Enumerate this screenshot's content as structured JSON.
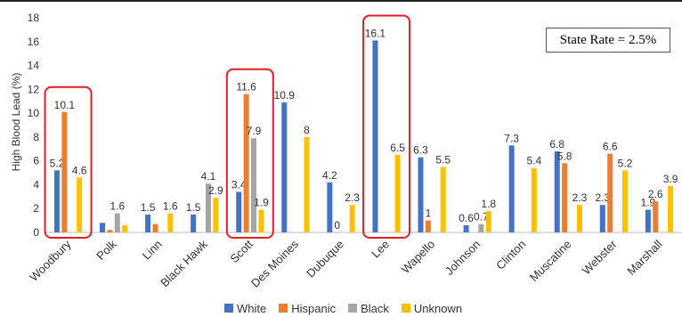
{
  "chart_data": {
    "type": "bar",
    "title": "",
    "ylabel": "High Blood Lead (%)",
    "xlabel": "",
    "ylim": [
      0,
      18
    ],
    "yticks": [
      "0",
      "2",
      "4",
      "6",
      "8",
      "10",
      "12",
      "14",
      "16",
      "18"
    ],
    "grid": false,
    "legend_placement": "bottom",
    "categories": [
      "Woodbury",
      "Polk",
      "Linn",
      "Black Hawk",
      "Scott",
      "Des Moines",
      "Dubuque",
      "Lee",
      "Wapello",
      "Johnson",
      "Clinton",
      "Muscatine",
      "Webster",
      "Marshall"
    ],
    "series": [
      {
        "name": "White",
        "color": "#4472C4",
        "values": [
          5.2,
          0.8,
          1.5,
          1.5,
          3.4,
          10.9,
          4.2,
          16.1,
          6.3,
          0.6,
          7.3,
          6.8,
          2.3,
          1.9
        ],
        "labels": [
          "5.2",
          "",
          "1.5",
          "1.5",
          "3.4",
          "10.9",
          "4.2",
          "16.1",
          "6.3",
          "0.6",
          "7.3",
          "6.8",
          "2.3",
          "1.9"
        ]
      },
      {
        "name": "Hispanic",
        "color": "#ED7D31",
        "values": [
          10.1,
          0.2,
          0.7,
          0,
          11.6,
          0,
          0,
          0,
          1,
          0,
          0,
          5.8,
          6.6,
          2.6
        ],
        "labels": [
          "10.1",
          "",
          "",
          "",
          "11.6",
          "",
          "0",
          "",
          "1",
          "",
          "",
          "5.8",
          "6.6",
          "2.6"
        ]
      },
      {
        "name": "Black",
        "color": "#A5A5A5",
        "values": [
          0,
          1.6,
          0,
          4.1,
          7.9,
          0,
          0,
          0,
          0,
          0.7,
          0,
          0,
          0,
          0
        ],
        "labels": [
          "",
          "1.6",
          "",
          "4.1",
          "7.9",
          "",
          "",
          "",
          "",
          "0.7",
          "",
          "",
          "",
          ""
        ]
      },
      {
        "name": "Unknown",
        "color": "#FFC000",
        "values": [
          4.6,
          0.6,
          1.6,
          2.9,
          1.9,
          8,
          2.3,
          6.5,
          5.5,
          1.8,
          5.4,
          2.3,
          5.2,
          3.9
        ],
        "labels": [
          "4.6",
          "",
          "1.6",
          "2.9",
          "1.9",
          "8",
          "2.3",
          "6.5",
          "5.5",
          "1.8",
          "5.4",
          "2.3",
          "5.2",
          "3.9"
        ]
      }
    ],
    "annotations": {
      "state_rate": "State Rate = 2.5%",
      "highlighted_categories": [
        "Woodbury",
        "Scott",
        "Lee"
      ],
      "highlight_color": "#E41E26"
    }
  }
}
